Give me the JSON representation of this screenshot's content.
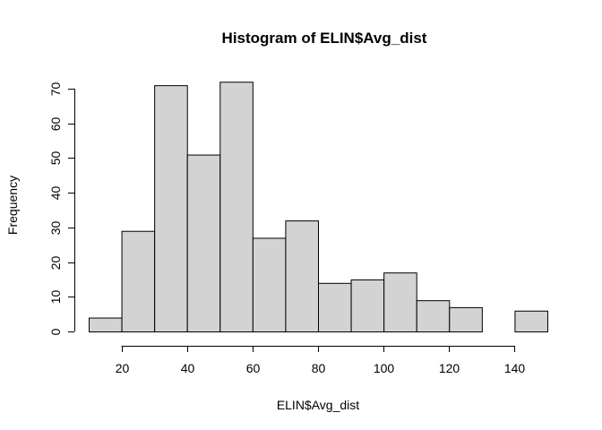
{
  "chart_data": {
    "type": "bar",
    "title": "Histogram of ELIN$Avg_dist",
    "xlabel": "ELIN$Avg_dist",
    "ylabel": "Frequency",
    "bins": [
      {
        "x0": 10,
        "x1": 20,
        "count": 4
      },
      {
        "x0": 20,
        "x1": 30,
        "count": 29
      },
      {
        "x0": 30,
        "x1": 40,
        "count": 71
      },
      {
        "x0": 40,
        "x1": 50,
        "count": 51
      },
      {
        "x0": 50,
        "x1": 60,
        "count": 72
      },
      {
        "x0": 60,
        "x1": 70,
        "count": 27
      },
      {
        "x0": 70,
        "x1": 80,
        "count": 32
      },
      {
        "x0": 80,
        "x1": 90,
        "count": 14
      },
      {
        "x0": 90,
        "x1": 100,
        "count": 15
      },
      {
        "x0": 100,
        "x1": 110,
        "count": 17
      },
      {
        "x0": 110,
        "x1": 120,
        "count": 9
      },
      {
        "x0": 120,
        "x1": 130,
        "count": 7
      },
      {
        "x0": 130,
        "x1": 140,
        "count": 0
      },
      {
        "x0": 140,
        "x1": 150,
        "count": 6
      }
    ],
    "xticks": [
      "20",
      "40",
      "60",
      "80",
      "100",
      "120",
      "140"
    ],
    "yticks": [
      "0",
      "10",
      "20",
      "30",
      "40",
      "50",
      "60",
      "70"
    ],
    "xlim": [
      10,
      150
    ],
    "ylim": [
      0,
      72
    ],
    "bar_color": "#d3d3d3",
    "grid": false,
    "legend": "none"
  }
}
